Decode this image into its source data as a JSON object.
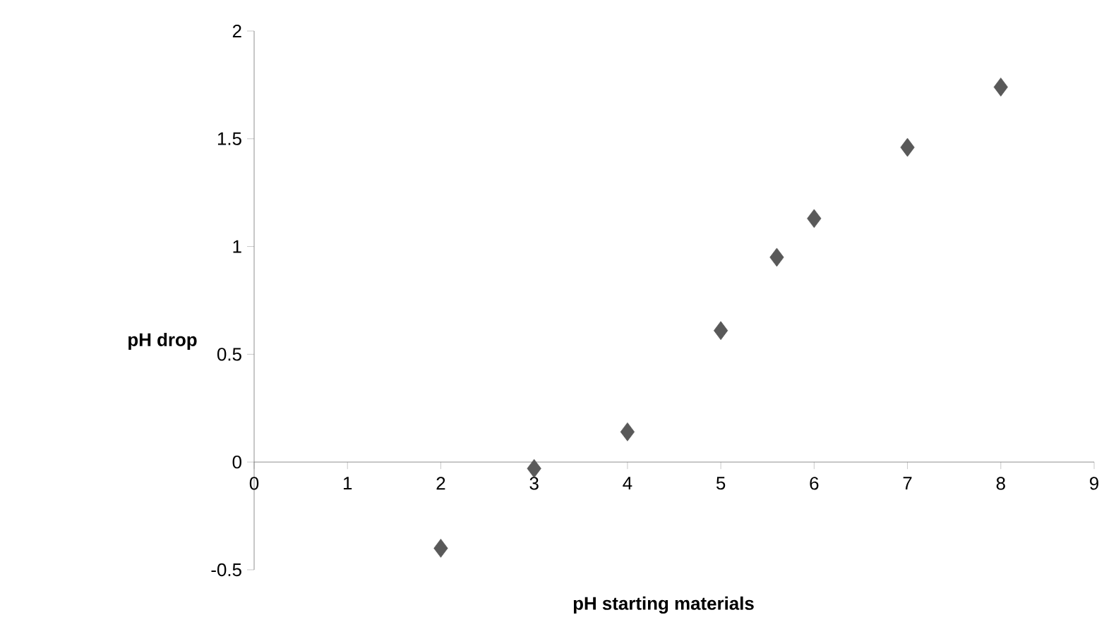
{
  "chart_data": {
    "type": "scatter",
    "xlabel": "pH  starting materials",
    "ylabel": "pH drop",
    "x": [
      2,
      3,
      4,
      5,
      5.6,
      6,
      7,
      8
    ],
    "series": [
      {
        "color": "#595959",
        "values": [
          -0.4,
          -0.03,
          0.14,
          0.61,
          0.95,
          1.13,
          1.46,
          1.74
        ]
      }
    ],
    "xlim": [
      0,
      9
    ],
    "ylim": [
      -0.5,
      2
    ],
    "xticks": [
      0,
      1,
      2,
      3,
      4,
      5,
      6,
      7,
      8,
      9
    ],
    "yticks": [
      -0.5,
      0,
      0.5,
      1,
      1.5,
      2
    ],
    "marker": "diamond",
    "grid": false
  }
}
